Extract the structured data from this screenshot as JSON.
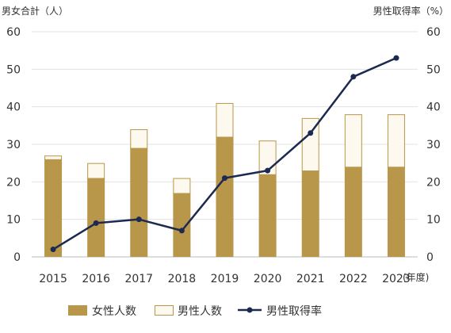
{
  "chart_data": {
    "type": "bar",
    "categories": [
      "2015",
      "2016",
      "2017",
      "2018",
      "2019",
      "2020",
      "2021",
      "2022",
      "2023"
    ],
    "x_unit": "(年度)",
    "left_axis": {
      "label": "男女合計（人）",
      "ylim": [
        0,
        60
      ],
      "ticks": [
        0,
        10,
        20,
        30,
        40,
        50,
        60
      ]
    },
    "right_axis": {
      "label": "男性取得率（%）",
      "ylim": [
        0,
        60
      ],
      "ticks": [
        0,
        10,
        20,
        30,
        40,
        50,
        60
      ]
    },
    "grid": true,
    "legend_position": "bottom",
    "series": [
      {
        "name": "女性人数",
        "type": "bar",
        "stack": "total",
        "axis": "left",
        "color": "#b8964a",
        "values": [
          26,
          21,
          29,
          17,
          32,
          22,
          23,
          24,
          24
        ]
      },
      {
        "name": "男性人数",
        "type": "bar",
        "stack": "total",
        "axis": "left",
        "color": "#fdf9ee",
        "border_color": "#b8964a",
        "values": [
          1,
          4,
          5,
          4,
          9,
          9,
          14,
          14,
          14
        ]
      },
      {
        "name": "男性取得率",
        "type": "line",
        "axis": "right",
        "color": "#1c2a52",
        "values": [
          2,
          9,
          10,
          7,
          21,
          23,
          33,
          48,
          53
        ]
      }
    ]
  }
}
